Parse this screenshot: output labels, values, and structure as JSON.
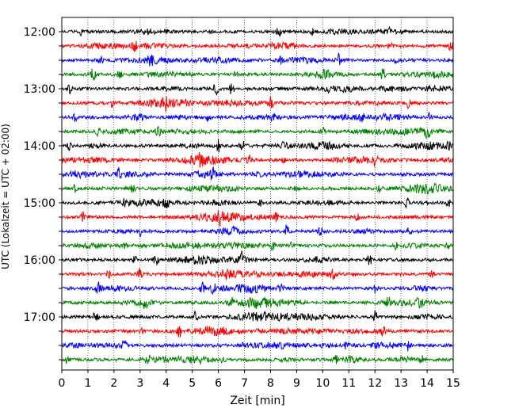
{
  "chart_data": {
    "type": "line",
    "title": "",
    "xlabel": "Zeit  [min]",
    "ylabel": "UTC (Lokalzeit = UTC + 02:00)",
    "xlim": [
      0,
      15
    ],
    "x_ticks": [
      0,
      1,
      2,
      3,
      4,
      5,
      6,
      7,
      8,
      9,
      10,
      11,
      12,
      13,
      14,
      15
    ],
    "x_tick_labels": [
      "0",
      "1",
      "2",
      "3",
      "4",
      "5",
      "6",
      "7",
      "8",
      "9",
      "10",
      "11",
      "12",
      "13",
      "14",
      "15"
    ],
    "grid": "vertical dotted at each minute",
    "trace_interval_min": 15,
    "start_time": "12:00",
    "trace_count": 24,
    "hour_labels": [
      {
        "trace_index": 0,
        "label": "12:00"
      },
      {
        "trace_index": 4,
        "label": "13:00"
      },
      {
        "trace_index": 8,
        "label": "14:00"
      },
      {
        "trace_index": 12,
        "label": "15:00"
      },
      {
        "trace_index": 16,
        "label": "16:00"
      },
      {
        "trace_index": 20,
        "label": "17:00"
      }
    ],
    "color_cycle": [
      "#000000",
      "#ff0000",
      "#0000ff",
      "#008000"
    ],
    "series": [
      {
        "name": "12:00",
        "color": "#000000",
        "events": [
          {
            "x": 0.7,
            "amp": 0.5
          },
          {
            "x": 4.0,
            "amp": 0.5
          },
          {
            "x": 8.3,
            "amp": 0.9
          },
          {
            "x": 9.6,
            "amp": 0.4
          },
          {
            "x": 12.5,
            "amp": 0.6
          }
        ]
      },
      {
        "name": "12:15",
        "color": "#ff0000",
        "events": [
          {
            "x": 2.8,
            "amp": 0.7
          },
          {
            "x": 12.6,
            "amp": 0.8
          },
          {
            "x": 14.9,
            "amp": 0.8
          }
        ]
      },
      {
        "name": "12:30",
        "color": "#0000ff",
        "events": [
          {
            "x": 1.5,
            "amp": 0.5
          },
          {
            "x": 3.4,
            "amp": 0.6
          },
          {
            "x": 8.4,
            "amp": 0.5
          },
          {
            "x": 10.6,
            "amp": 0.9
          },
          {
            "x": 12.8,
            "amp": 0.5
          }
        ]
      },
      {
        "name": "12:45",
        "color": "#008000",
        "events": [
          {
            "x": 1.2,
            "amp": 0.9
          },
          {
            "x": 2.2,
            "amp": 0.6
          },
          {
            "x": 6.7,
            "amp": 0.5
          },
          {
            "x": 12.3,
            "amp": 0.9
          }
        ]
      },
      {
        "name": "13:00",
        "color": "#000000",
        "events": [
          {
            "x": 0.3,
            "amp": 0.6
          },
          {
            "x": 5.9,
            "amp": 0.9
          },
          {
            "x": 6.5,
            "amp": 0.7
          },
          {
            "x": 10.2,
            "amp": 0.5
          }
        ]
      },
      {
        "name": "13:15",
        "color": "#ff0000",
        "events": [
          {
            "x": 1.9,
            "amp": 0.6
          },
          {
            "x": 4.0,
            "amp": 0.5
          },
          {
            "x": 8.0,
            "amp": 0.7
          },
          {
            "x": 13.3,
            "amp": 0.9
          }
        ]
      },
      {
        "name": "13:30",
        "color": "#0000ff",
        "events": [
          {
            "x": 0.5,
            "amp": 0.5
          },
          {
            "x": 5.6,
            "amp": 0.6
          },
          {
            "x": 8.1,
            "amp": 0.6
          },
          {
            "x": 11.5,
            "amp": 0.4
          },
          {
            "x": 14.1,
            "amp": 0.5
          }
        ]
      },
      {
        "name": "13:45",
        "color": "#008000",
        "events": [
          {
            "x": 1.4,
            "amp": 0.5
          },
          {
            "x": 3.7,
            "amp": 0.5
          },
          {
            "x": 10.0,
            "amp": 0.5
          },
          {
            "x": 14.0,
            "amp": 0.9
          }
        ]
      },
      {
        "name": "14:00",
        "color": "#000000",
        "events": [
          {
            "x": 0.3,
            "amp": 0.7
          },
          {
            "x": 4.7,
            "amp": 0.6
          },
          {
            "x": 6.0,
            "amp": 0.9
          },
          {
            "x": 6.9,
            "amp": 0.9
          },
          {
            "x": 8.5,
            "amp": 0.6
          },
          {
            "x": 14.8,
            "amp": 0.6
          }
        ]
      },
      {
        "name": "14:15",
        "color": "#ff0000",
        "events": [
          {
            "x": 5.3,
            "amp": 0.6
          },
          {
            "x": 7.2,
            "amp": 0.7
          },
          {
            "x": 8.5,
            "amp": 0.5
          },
          {
            "x": 12.0,
            "amp": 0.5
          }
        ]
      },
      {
        "name": "14:30",
        "color": "#0000ff",
        "events": [
          {
            "x": 2.2,
            "amp": 0.8
          },
          {
            "x": 5.8,
            "amp": 0.8
          },
          {
            "x": 8.2,
            "amp": 0.6
          },
          {
            "x": 10.3,
            "amp": 0.4
          }
        ]
      },
      {
        "name": "14:45",
        "color": "#008000",
        "events": [
          {
            "x": 0.5,
            "amp": 0.6
          },
          {
            "x": 2.7,
            "amp": 0.6
          },
          {
            "x": 9.0,
            "amp": 0.5
          },
          {
            "x": 12.2,
            "amp": 0.5
          }
        ]
      },
      {
        "name": "15:00",
        "color": "#000000",
        "events": [
          {
            "x": 2.4,
            "amp": 0.6
          },
          {
            "x": 4.0,
            "amp": 0.7
          },
          {
            "x": 7.6,
            "amp": 0.5
          },
          {
            "x": 13.2,
            "amp": 1.0
          },
          {
            "x": 14.8,
            "amp": 0.5
          }
        ]
      },
      {
        "name": "15:15",
        "color": "#ff0000",
        "events": [
          {
            "x": 0.8,
            "amp": 0.7
          },
          {
            "x": 6.1,
            "amp": 0.9
          },
          {
            "x": 8.2,
            "amp": 0.6
          },
          {
            "x": 11.3,
            "amp": 0.5
          }
        ]
      },
      {
        "name": "15:30",
        "color": "#0000ff",
        "events": [
          {
            "x": 3.0,
            "amp": 0.6
          },
          {
            "x": 6.6,
            "amp": 0.5
          },
          {
            "x": 8.6,
            "amp": 0.9
          },
          {
            "x": 9.9,
            "amp": 0.6
          },
          {
            "x": 13.3,
            "amp": 0.8
          }
        ]
      },
      {
        "name": "15:45",
        "color": "#008000",
        "events": [
          {
            "x": 2.4,
            "amp": 0.5
          },
          {
            "x": 8.1,
            "amp": 0.6
          },
          {
            "x": 8.8,
            "amp": 0.6
          },
          {
            "x": 12.8,
            "amp": 0.4
          },
          {
            "x": 14.8,
            "amp": 0.5
          }
        ]
      },
      {
        "name": "16:00",
        "color": "#000000",
        "events": [
          {
            "x": 2.8,
            "amp": 0.5
          },
          {
            "x": 3.6,
            "amp": 0.8
          },
          {
            "x": 6.9,
            "amp": 0.9
          },
          {
            "x": 11.8,
            "amp": 0.7
          }
        ]
      },
      {
        "name": "16:15",
        "color": "#ff0000",
        "events": [
          {
            "x": 1.8,
            "amp": 0.5
          },
          {
            "x": 3.0,
            "amp": 0.9
          },
          {
            "x": 6.3,
            "amp": 0.6
          },
          {
            "x": 10.4,
            "amp": 0.8
          },
          {
            "x": 14.2,
            "amp": 0.5
          }
        ]
      },
      {
        "name": "16:30",
        "color": "#0000ff",
        "events": [
          {
            "x": 1.4,
            "amp": 0.8
          },
          {
            "x": 5.4,
            "amp": 0.9
          },
          {
            "x": 5.8,
            "amp": 0.9
          },
          {
            "x": 8.4,
            "amp": 0.7
          },
          {
            "x": 12.0,
            "amp": 0.5
          }
        ]
      },
      {
        "name": "16:45",
        "color": "#008000",
        "events": [
          {
            "x": 3.2,
            "amp": 0.7
          },
          {
            "x": 6.5,
            "amp": 0.6
          },
          {
            "x": 12.5,
            "amp": 0.8
          },
          {
            "x": 13.7,
            "amp": 0.6
          }
        ]
      },
      {
        "name": "17:00",
        "color": "#000000",
        "events": [
          {
            "x": 1.3,
            "amp": 0.8
          },
          {
            "x": 5.1,
            "amp": 0.7
          },
          {
            "x": 12.0,
            "amp": 0.8
          }
        ]
      },
      {
        "name": "17:15",
        "color": "#ff0000",
        "events": [
          {
            "x": 3.1,
            "amp": 0.5
          },
          {
            "x": 4.5,
            "amp": 0.9
          },
          {
            "x": 12.3,
            "amp": 0.8
          }
        ]
      },
      {
        "name": "17:30",
        "color": "#0000ff",
        "events": [
          {
            "x": 2.4,
            "amp": 0.9
          },
          {
            "x": 7.0,
            "amp": 0.6
          },
          {
            "x": 10.9,
            "amp": 0.5
          },
          {
            "x": 13.3,
            "amp": 0.9
          }
        ]
      },
      {
        "name": "17:45",
        "color": "#008000",
        "events": [
          {
            "x": 0.2,
            "amp": 0.5
          },
          {
            "x": 3.3,
            "amp": 0.8
          },
          {
            "x": 6.2,
            "amp": 0.6
          },
          {
            "x": 10.5,
            "amp": 0.6
          },
          {
            "x": 13.8,
            "amp": 0.5
          }
        ]
      }
    ]
  }
}
